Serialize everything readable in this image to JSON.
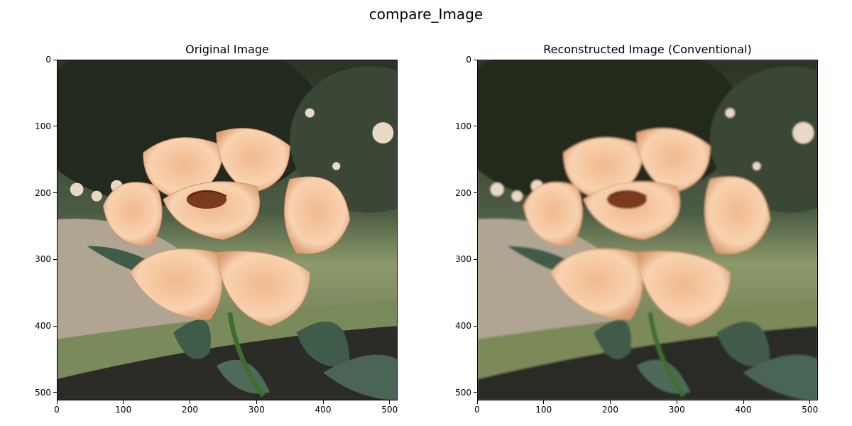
{
  "figure": {
    "suptitle": "compare_Image",
    "panels": [
      {
        "title": "Original Image",
        "x_ticks": [
          "0",
          "100",
          "200",
          "300",
          "400",
          "500"
        ],
        "y_ticks": [
          "0",
          "100",
          "200",
          "300",
          "400",
          "500"
        ],
        "blur": 0
      },
      {
        "title": "Reconstructed Image (Conventional)",
        "x_ticks": [
          "0",
          "100",
          "200",
          "300",
          "400",
          "500"
        ],
        "y_ticks": [
          "0",
          "100",
          "200",
          "300",
          "400",
          "500"
        ],
        "blur": 1.4
      }
    ]
  },
  "image_content": {
    "subject": "peach rose with green leaves in a garden",
    "colors": {
      "petal": "#f2b98d",
      "petal_light": "#f8d2b0",
      "petal_shadow": "#d99a6e",
      "center": "#7a3a1e",
      "leaf": "#3f5b4a",
      "stem": "#3d6e2e",
      "background_dark": "#2a3325",
      "background_mid": "#4c5c44",
      "path": "#b0a592",
      "grass": "#8c9a6a"
    }
  }
}
